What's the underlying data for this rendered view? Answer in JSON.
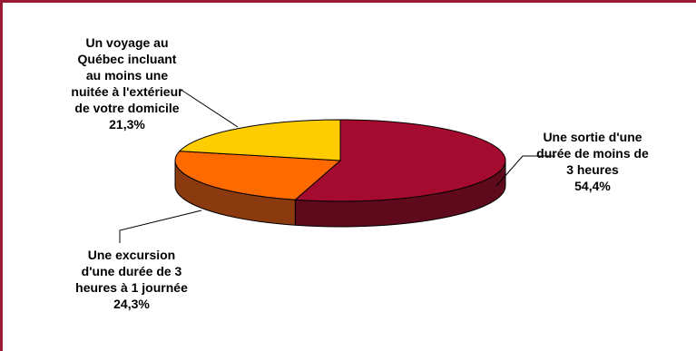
{
  "chart_data": {
    "type": "pie",
    "style": "3d",
    "title": "",
    "slices": [
      {
        "label_lines": [
          "Une sortie d'une",
          "durée de moins de",
          "3 heures"
        ],
        "percent_text": "54,4%",
        "value": 54.4,
        "color": "#a50b2e",
        "side_color": "#5e0a1c"
      },
      {
        "label_lines": [
          "Une excursion",
          "d'une durée de 3",
          "heures à 1 journée"
        ],
        "percent_text": "24,3%",
        "value": 24.3,
        "color": "#ff6a00",
        "side_color": "#8a3a0e"
      },
      {
        "label_lines": [
          "Un voyage au",
          "Québec incluant",
          "au moins une",
          "nuitée à l'extérieur",
          "de votre domicile"
        ],
        "percent_text": "21,3%",
        "value": 21.3,
        "color": "#ffcc00",
        "side_color": "#8a6d00"
      }
    ]
  }
}
